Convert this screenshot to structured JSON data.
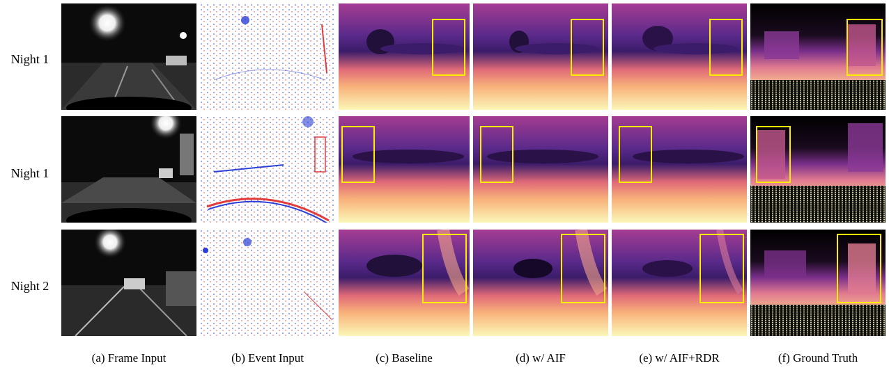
{
  "rows": [
    {
      "label": "Night 1"
    },
    {
      "label": "Night 1"
    },
    {
      "label": "Night 2"
    }
  ],
  "captions": [
    "(a) Frame Input",
    "(b) Event Input",
    "(c) Baseline",
    "(d) w/ AIF",
    "(e) w/ AIF+RDR",
    "(f) Ground Truth"
  ],
  "colors": {
    "highlight_box": "#ffee00",
    "event_positive": "#e23b3b",
    "event_negative": "#2b3fd6",
    "depth_far": "#2a0a4a",
    "depth_near": "#fbf6b8"
  }
}
